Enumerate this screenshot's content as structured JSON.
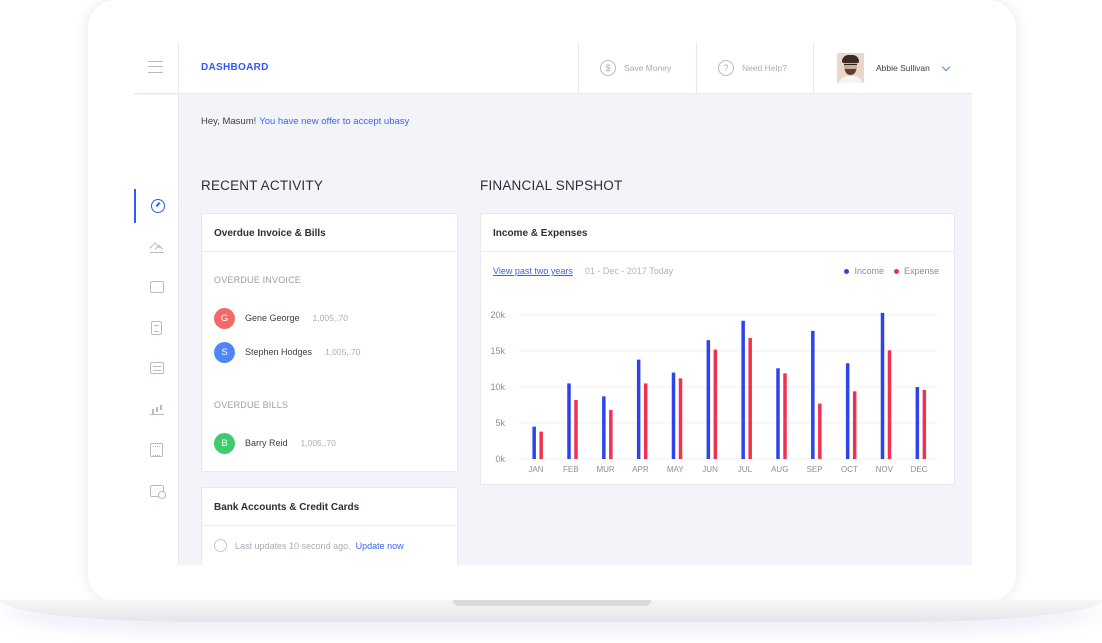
{
  "header": {
    "brand": "DASHBOARD",
    "save_money_label": "Save Money",
    "save_money_icon": "dollar-circle-icon",
    "help_label": "Need Help?",
    "help_icon": "question-circle-icon",
    "user_name": "Abbie Sullivan"
  },
  "sidebar": {
    "items": [
      {
        "icon": "gauge-icon",
        "active": true
      },
      {
        "icon": "mountain-chart-icon",
        "active": false
      },
      {
        "icon": "wallet-icon",
        "active": false
      },
      {
        "icon": "document-icon",
        "active": false
      },
      {
        "icon": "message-icon",
        "active": false
      },
      {
        "icon": "growth-bars-icon",
        "active": false
      },
      {
        "icon": "calculator-icon",
        "active": false
      },
      {
        "icon": "card-settings-icon",
        "active": false
      }
    ]
  },
  "greeting": {
    "text": "Hey, Masum!",
    "link": "You have new offer to accept ubasy"
  },
  "recent_activity": {
    "title": "RECENT ACTIVITY",
    "overdue_card": {
      "title": "Overdue Invoice & Bills",
      "invoice_label": "OVERDUE INVOICE",
      "invoices": [
        {
          "initial": "G",
          "name": "Gene George",
          "amount": "1,005,.70",
          "color": "#f06a6a"
        },
        {
          "initial": "S",
          "name": "Stephen Hodges",
          "amount": "1,005,.70",
          "color": "#4f86f7"
        }
      ],
      "bills_label": "OVERDUE BILLS",
      "bills": [
        {
          "initial": "B",
          "name": "Barry Reid",
          "amount": "1,005,.70",
          "color": "#3ecb6e"
        }
      ]
    },
    "bank_card": {
      "title": "Bank Accounts & Credit Cards",
      "update_text": "Last updates 10 second ago.",
      "update_link": "Update now"
    }
  },
  "financial": {
    "title": "FINANCIAL SNPSHOT",
    "card_title": "Income & Expenses",
    "view_link": "View past two years",
    "date_range": "01 - Dec - 2017 Today"
  },
  "chart_data": {
    "type": "bar",
    "categories": [
      "JAN",
      "FEB",
      "MUR",
      "APR",
      "MAY",
      "JUN",
      "JUL",
      "AUG",
      "SEP",
      "OCT",
      "NOV",
      "DEC"
    ],
    "series": [
      {
        "name": "Income",
        "color": "#2d45e8",
        "values": [
          4500,
          10500,
          8700,
          13800,
          12000,
          16500,
          19200,
          12600,
          17800,
          13300,
          20300,
          10000
        ]
      },
      {
        "name": "Expense",
        "color": "#f0314f",
        "values": [
          3800,
          8200,
          6800,
          10500,
          11200,
          15200,
          16800,
          11900,
          7700,
          9400,
          15100,
          9600
        ]
      }
    ],
    "y_ticks": [
      "0k",
      "5k",
      "10k",
      "15k",
      "20k"
    ],
    "ylim": [
      0,
      20000
    ],
    "grid": true,
    "legend": "top-right"
  }
}
